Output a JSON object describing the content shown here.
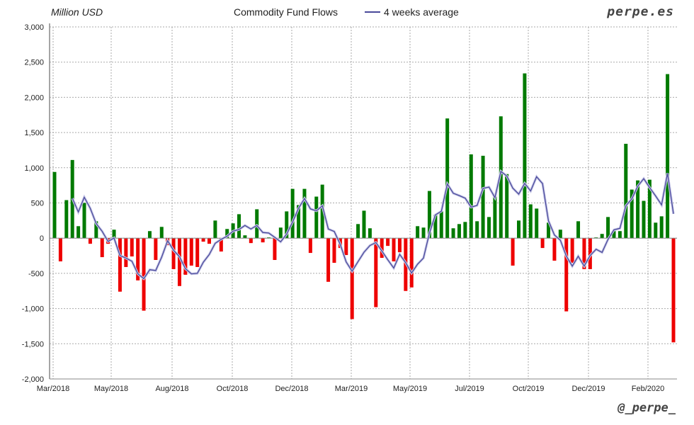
{
  "chart_data": {
    "type": "bar",
    "title": "Commodity Fund Flows",
    "ylabel": "Million USD",
    "ylim": [
      -2000,
      3000
    ],
    "yticks": [
      "3,000",
      "2,500",
      "2,000",
      "1,500",
      "1,000",
      "500",
      "0",
      "-500",
      "-1,000",
      "-1,500",
      "-2,000"
    ],
    "ytick_values": [
      3000,
      2500,
      2000,
      1500,
      1000,
      500,
      0,
      -500,
      -1000,
      -1500,
      -2000
    ],
    "xticks": [
      "Mar/2018",
      "May/2018",
      "Aug/2018",
      "Oct/2018",
      "Dec/2018",
      "Mar/2019",
      "May/2019",
      "Jul/2019",
      "Oct/2019",
      "Dec/2019",
      "Feb/2020"
    ],
    "grid": true,
    "colors": {
      "positive": "#007a00",
      "negative": "#ee0000",
      "line": "#4a4a9a"
    },
    "series": [
      {
        "type": "bar",
        "values": [
          940,
          -330,
          540,
          1110,
          170,
          500,
          -80,
          240,
          -270,
          -80,
          120,
          -760,
          -410,
          -260,
          -600,
          -1030,
          100,
          -310,
          160,
          -100,
          -440,
          -680,
          -520,
          -390,
          -410,
          -50,
          -80,
          250,
          -190,
          130,
          210,
          340,
          40,
          -70,
          410,
          -60,
          10,
          -310,
          150,
          380,
          700,
          470,
          700,
          -210,
          590,
          760,
          -620,
          -350,
          -140,
          -240,
          -1150,
          200,
          390,
          140,
          -980,
          -280,
          -110,
          -330,
          -200,
          -750,
          -700,
          170,
          150,
          670,
          330,
          380,
          1700,
          140,
          200,
          230,
          1190,
          240,
          1170,
          300,
          590,
          1730,
          910,
          -390,
          250,
          2340,
          480,
          420,
          -140,
          220,
          -320,
          120,
          -1040,
          -350,
          240,
          -440,
          -440,
          10,
          60,
          300,
          100,
          100,
          1340,
          690,
          820,
          530,
          830,
          220,
          310,
          2330,
          -1480
        ]
      },
      {
        "type": "line",
        "name": "4 weeks average",
        "window": 4
      }
    ]
  },
  "header": {
    "brand": "perpe.es",
    "handle": "@_perpe_"
  }
}
